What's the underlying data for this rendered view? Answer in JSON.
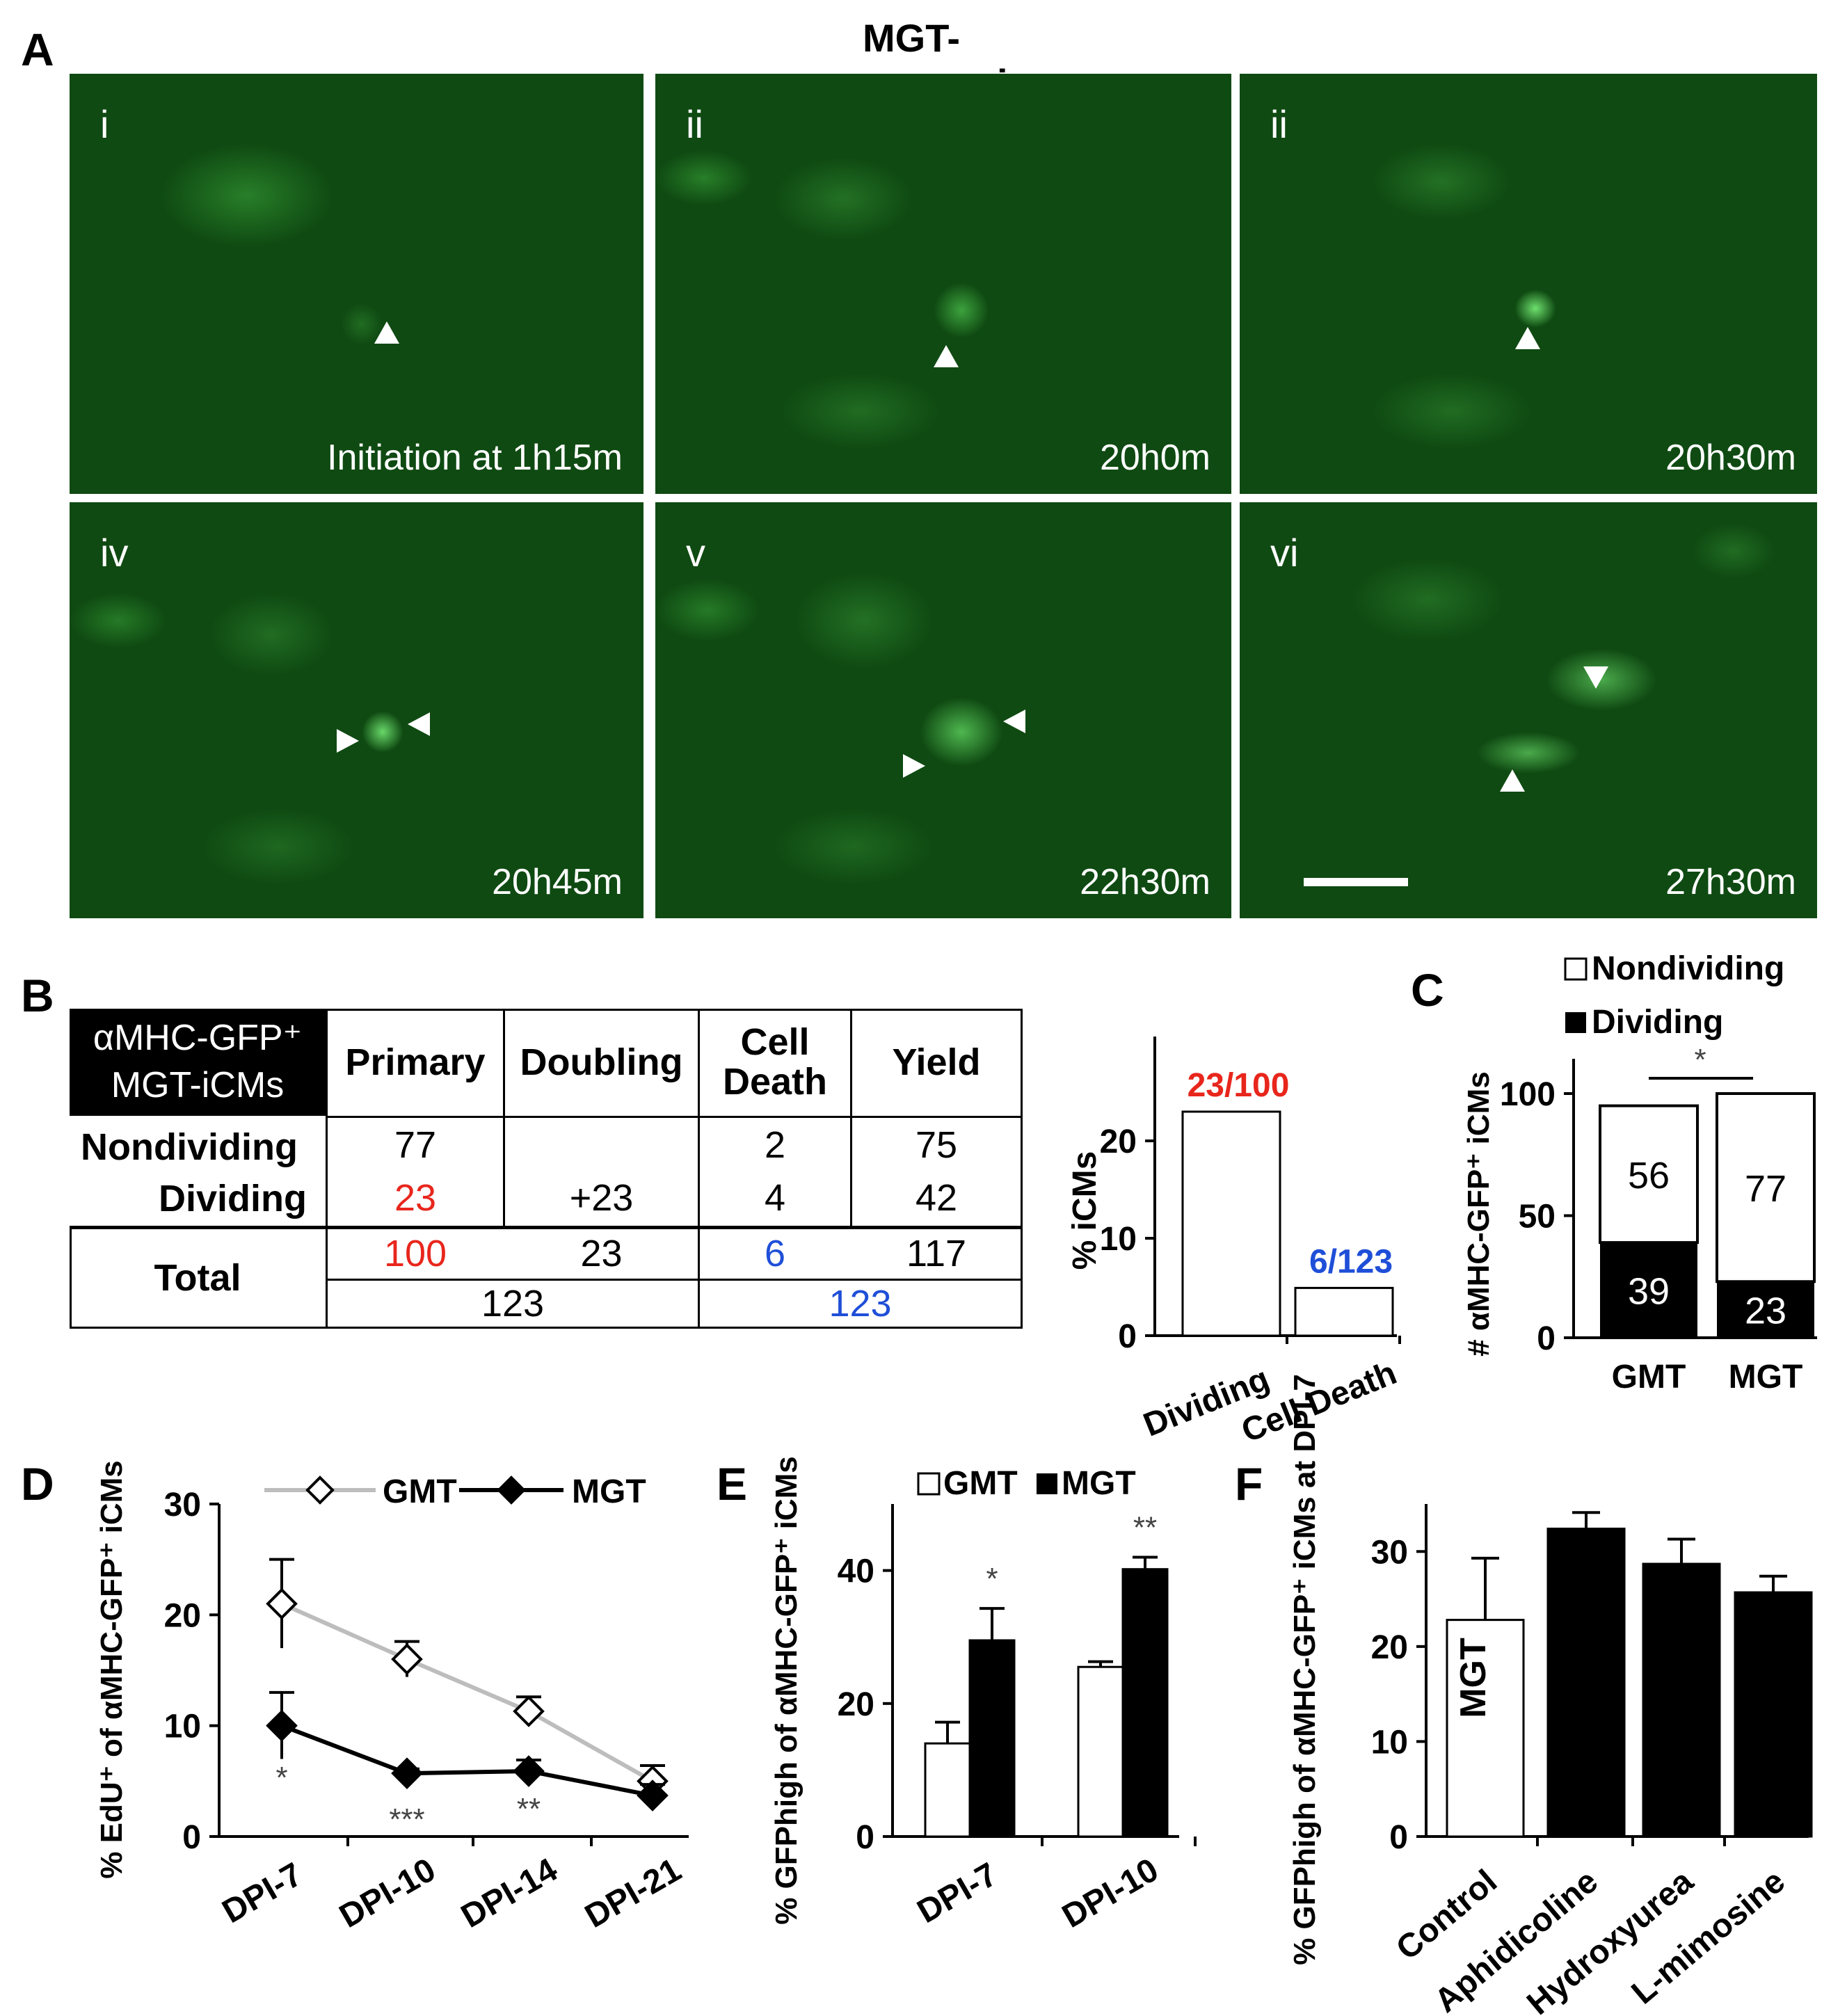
{
  "figure": {
    "title": "MGT-reprogramming",
    "panel_labels": [
      "A",
      "B",
      "C",
      "D",
      "E",
      "F"
    ]
  },
  "panel_a": {
    "frames": [
      {
        "tag": "i",
        "time": "Initiation at 1h15m"
      },
      {
        "tag": "ii",
        "time": "20h0m"
      },
      {
        "tag": "ii",
        "time": "20h30m"
      },
      {
        "tag": "iv",
        "time": "20h45m"
      },
      {
        "tag": "v",
        "time": "22h30m"
      },
      {
        "tag": "vi",
        "time": "27h30m"
      }
    ]
  },
  "panel_b": {
    "table": {
      "corner_line1": "αMHC-GFP⁺",
      "corner_line2": "MGT-iCMs",
      "headers": [
        "Primary",
        "Doubling",
        "Cell Death",
        "Yield"
      ],
      "rows": [
        {
          "label": "Nondividing",
          "values": [
            "77",
            "",
            "2",
            "75"
          ]
        },
        {
          "label": "Dividing",
          "values": [
            "23",
            "+23",
            "4",
            "42"
          ]
        },
        {
          "label": "Total",
          "values": [
            "100",
            "23",
            "6",
            "117"
          ]
        }
      ],
      "subtotals": [
        "123",
        "123"
      ],
      "colors": {
        "red": "#e8261c",
        "blue": "#1f4fd8"
      }
    },
    "chart_data": {
      "type": "bar",
      "categories": [
        "Dividing",
        "Cell Death"
      ],
      "values": [
        23,
        4.9
      ],
      "ylabel": "% iCMs",
      "ylim": [
        0,
        20
      ],
      "yticks": [
        "0",
        "10",
        "20"
      ],
      "annotations": [
        "23/100",
        "6/123"
      ],
      "annotation_colors": [
        "#e8261c",
        "#1f4fd8"
      ]
    }
  },
  "panel_c": {
    "chart_data": {
      "type": "bar",
      "stacked": true,
      "categories": [
        "GMT",
        "MGT"
      ],
      "series": [
        {
          "name": "Dividing",
          "values": [
            39,
            23
          ],
          "labels": [
            "39",
            "23"
          ]
        },
        {
          "name": "Nondividing",
          "values": [
            56,
            77
          ],
          "labels": [
            "56",
            "77"
          ]
        }
      ],
      "ylabel": "# αMHC-GFP⁺ iCMs",
      "yticks": [
        "0",
        "50",
        "100"
      ],
      "ylim": [
        0,
        100
      ],
      "significance": "*"
    }
  },
  "panel_d": {
    "chart_data": {
      "type": "line",
      "categories": [
        "DPI-7",
        "DPI-10",
        "DPI-14",
        "DPI-21"
      ],
      "series": [
        {
          "name": "GMT",
          "values": [
            21,
            16,
            11.3,
            5
          ],
          "errors": [
            4,
            1.6,
            1.3,
            1.4
          ],
          "color": "#bdbdbd"
        },
        {
          "name": "MGT",
          "values": [
            10,
            5.7,
            5.9,
            3.7
          ],
          "errors": [
            3,
            0.4,
            1,
            1
          ],
          "color": "#000000"
        }
      ],
      "ylabel": "% EdU⁺ of αMHC-GFP⁺ iCMs",
      "yticks": [
        "0",
        "10",
        "20",
        "30"
      ],
      "ylim": [
        0,
        30
      ],
      "significance": [
        "*",
        "***",
        "**",
        ""
      ]
    }
  },
  "panel_e": {
    "chart_data": {
      "type": "bar",
      "categories": [
        "DPI-7",
        "DPI-10"
      ],
      "series": [
        {
          "name": "GMT",
          "values": [
            14,
            25.5
          ],
          "errors": [
            3.2,
            0.8
          ]
        },
        {
          "name": "MGT",
          "values": [
            29.5,
            40.2
          ],
          "errors": [
            4.8,
            1.8
          ]
        }
      ],
      "ylabel": "% GFPhigh of αMHC-GFP⁺ iCMs",
      "yticks": [
        "0",
        "20",
        "40"
      ],
      "ylim": [
        0,
        40
      ],
      "significance": [
        "*",
        "**"
      ]
    }
  },
  "panel_f": {
    "chart_data": {
      "type": "bar",
      "categories": [
        "Control",
        "Aphidicoline",
        "Hydroxyurea",
        "L-mimosine"
      ],
      "values": [
        22.8,
        32.4,
        28.7,
        25.7
      ],
      "errors": [
        6.5,
        1.7,
        2.6,
        1.7
      ],
      "bar_label": "MGT",
      "ylabel": "% GFPhigh of αMHC-GFP⁺ iCMs at DPI-7",
      "yticks": [
        "0",
        "10",
        "20",
        "30"
      ],
      "ylim": [
        0,
        30
      ]
    }
  }
}
